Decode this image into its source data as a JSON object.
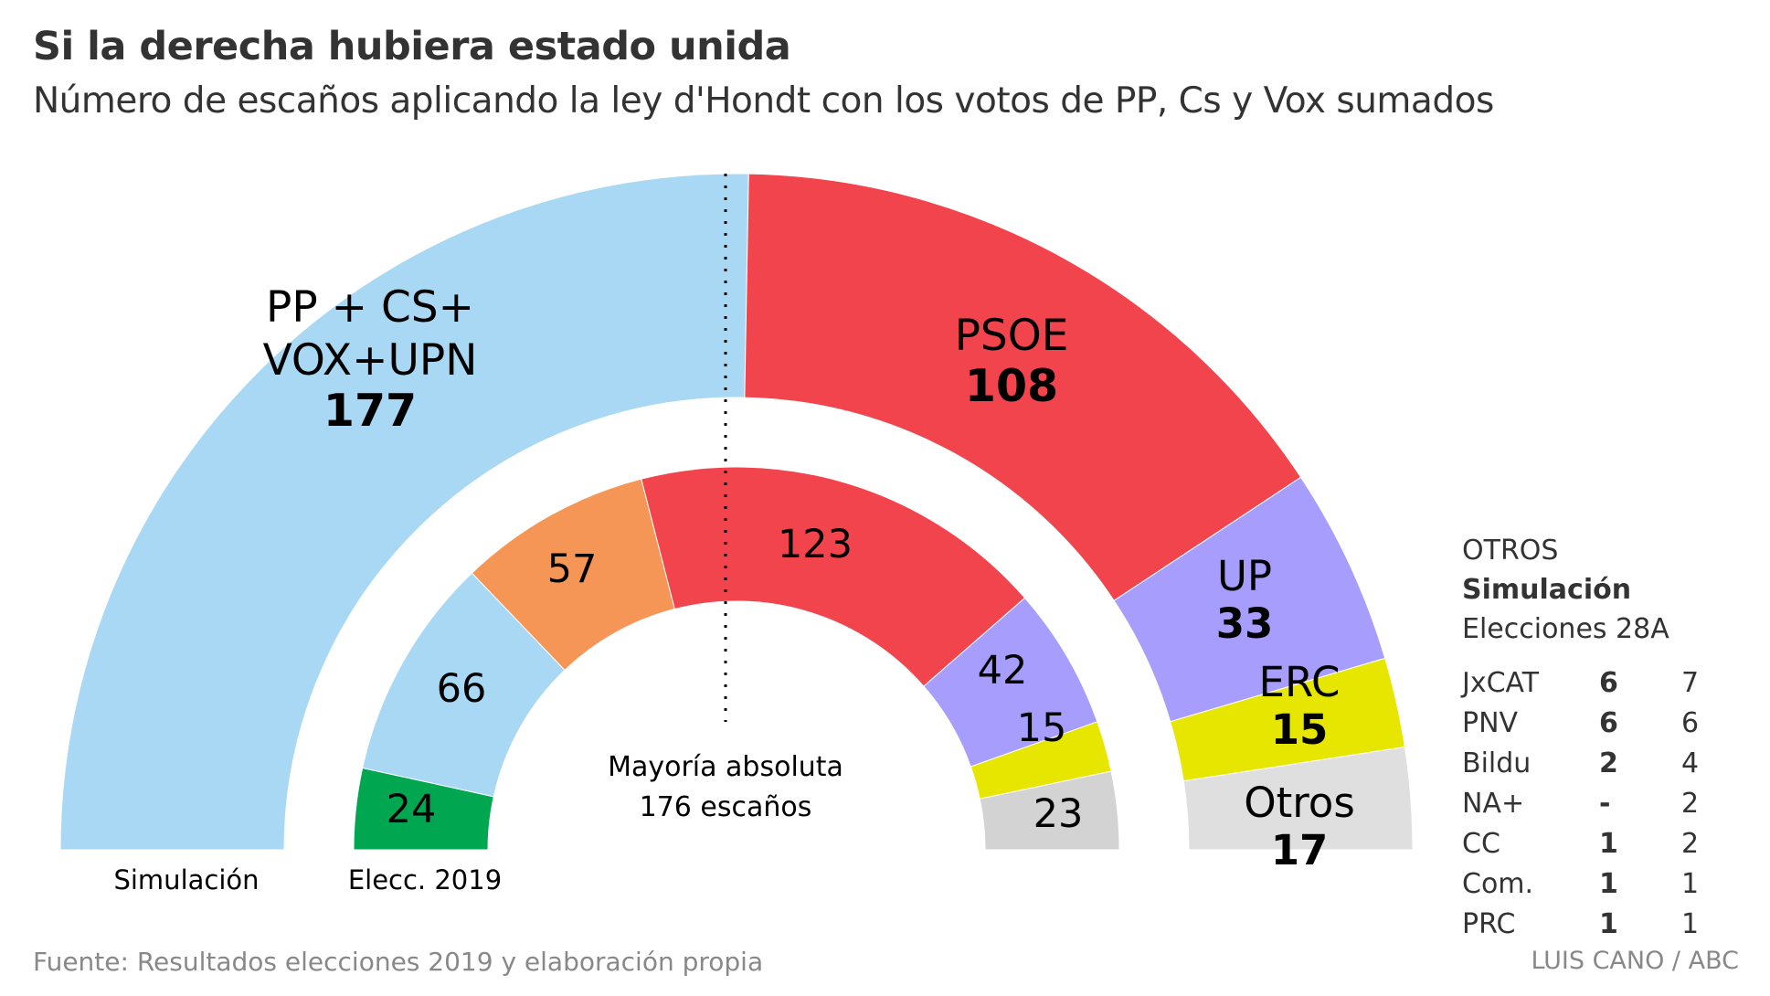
{
  "header": {
    "title": "Si la derecha hubiera estado unida",
    "subtitle": "Número de escaños aplicando la ley d'Hondt con los votos de PP, Cs y Vox sumados"
  },
  "chart_data": {
    "type": "pie",
    "subtype": "parliament-semicircle",
    "title": "Si la derecha hubiera estado unida",
    "subtitle": "Número de escaños aplicando la ley d'Hondt con los votos de PP, Cs y Vox sumados",
    "total_seats": 350,
    "majority": {
      "label_line1": "Mayoría absoluta",
      "label_line2": "176 escaños",
      "value": 176
    },
    "rings": [
      {
        "name": "Simulación",
        "label": "Simulación",
        "position": "outer",
        "segments": [
          {
            "name": "PP + CS+ VOX+UPN",
            "label_lines": [
              "PP + CS+",
              "VOX+UPN"
            ],
            "value": 177,
            "color": "#a8d8f3"
          },
          {
            "name": "PSOE",
            "label_lines": [
              "PSOE"
            ],
            "value": 108,
            "color": "#f1444c"
          },
          {
            "name": "UP",
            "label_lines": [
              "UP"
            ],
            "value": 33,
            "color": "#a69dfc"
          },
          {
            "name": "ERC",
            "label_lines": [
              "ERC"
            ],
            "value": 15,
            "color": "#e6e600"
          },
          {
            "name": "Otros",
            "label_lines": [
              "Otros"
            ],
            "value": 17,
            "color": "#dfdfdf"
          }
        ]
      },
      {
        "name": "Elecc. 2019",
        "label": "Elecc. 2019",
        "position": "inner",
        "segments": [
          {
            "name": "Vox",
            "value": 24,
            "color": "#00a650"
          },
          {
            "name": "PP",
            "value": 66,
            "color": "#a8d8f3"
          },
          {
            "name": "Cs",
            "value": 57,
            "color": "#f59656"
          },
          {
            "name": "PSOE",
            "value": 123,
            "color": "#f1444c"
          },
          {
            "name": "UP",
            "value": 42,
            "color": "#a69dfc"
          },
          {
            "name": "ERC",
            "value": 15,
            "color": "#e6e600"
          },
          {
            "name": "Otros",
            "value": 23,
            "color": "#d3d3d3"
          }
        ]
      }
    ]
  },
  "otros_table": {
    "title": "OTROS",
    "col_simulation": "Simulación",
    "col_elections": "Elecciones 28A",
    "rows": [
      {
        "party": "JxCAT",
        "simulation": "6",
        "elections": "7"
      },
      {
        "party": "PNV",
        "simulation": "6",
        "elections": "6"
      },
      {
        "party": "Bildu",
        "simulation": "2",
        "elections": "4"
      },
      {
        "party": "NA+",
        "simulation": "-",
        "elections": "2"
      },
      {
        "party": "CC",
        "simulation": "1",
        "elections": "2"
      },
      {
        "party": "Com.",
        "simulation": "1",
        "elections": "1"
      },
      {
        "party": "PRC",
        "simulation": "1",
        "elections": "1"
      }
    ]
  },
  "footer": {
    "source": "Fuente: Resultados elecciones 2019 y elaboración propia",
    "credit": "LUIS CANO / ABC"
  }
}
